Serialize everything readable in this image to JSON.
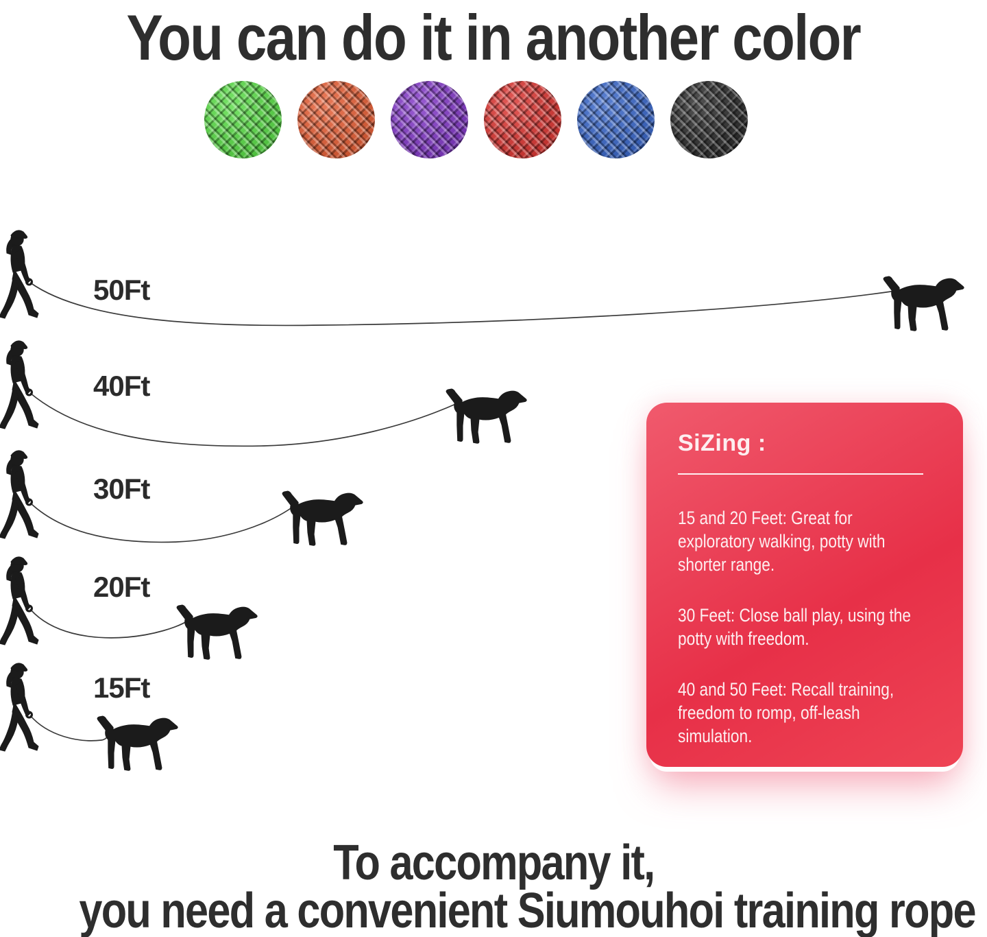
{
  "title": "You can do it in another color",
  "swatches": {
    "items": [
      {
        "name": "green",
        "hex": "#50da3c"
      },
      {
        "name": "orange",
        "hex": "#e4552a"
      },
      {
        "name": "purple",
        "hex": "#7c2ec5"
      },
      {
        "name": "red",
        "hex": "#da2b27"
      },
      {
        "name": "blue",
        "hex": "#2e5ec6"
      },
      {
        "name": "black",
        "hex": "#212121"
      }
    ]
  },
  "diagram": {
    "rows": [
      {
        "label": "50Ft"
      },
      {
        "label": "40Ft"
      },
      {
        "label": "30Ft"
      },
      {
        "label": "20Ft"
      },
      {
        "label": "15Ft"
      }
    ]
  },
  "sizing_card": {
    "heading": "SiZing :",
    "items": [
      "15 and 20 Feet: Great for exploratory walking, potty with shorter range.",
      "30 Feet: Close ball play, using the potty with freedom.",
      "40 and 50 Feet: Recall training, freedom to romp, off-leash simulation."
    ],
    "bg_gradient_start": "#f05a6d",
    "bg_gradient_mid": "#e73048",
    "bg_gradient_end": "#ee4354",
    "text_color": "#fdeef0"
  },
  "footer": {
    "line1": "To accompany it,",
    "line2": "you need a convenient Siumouhoi training rope"
  },
  "ink_color": "#1b1b1b",
  "leash_color": "#3a3a3a"
}
